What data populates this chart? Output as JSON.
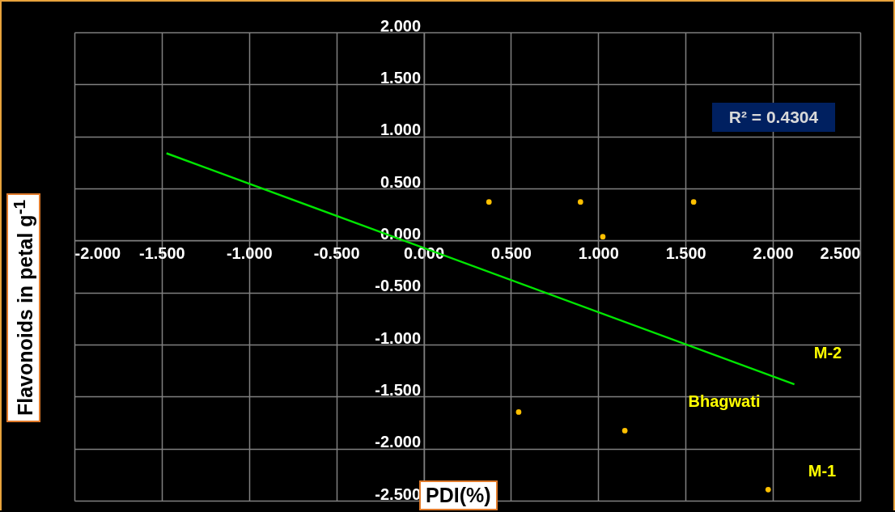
{
  "chart_data": {
    "type": "scatter",
    "xlabel": "PDI(%)",
    "ylabel": "Flavonoids in petal g$^{-1}$",
    "xlim": [
      -2,
      2.5
    ],
    "ylim": [
      -2.5,
      2
    ],
    "xticks": [
      {
        "value": -2,
        "label": "-2.000"
      },
      {
        "value": -1.5,
        "label": "-1.500"
      },
      {
        "value": -1,
        "label": "-1.000"
      },
      {
        "value": -0.5,
        "label": "-0.500"
      },
      {
        "value": 0,
        "label": "0.000"
      },
      {
        "value": 0.5,
        "label": "0.500"
      },
      {
        "value": 1,
        "label": "1.000"
      },
      {
        "value": 1.5,
        "label": "1.500"
      },
      {
        "value": 2,
        "label": "2.000"
      },
      {
        "value": 2.5,
        "label": "2.500"
      }
    ],
    "yticks": [
      {
        "value": -2.5,
        "label": "-2.500"
      },
      {
        "value": -2,
        "label": "-2.000"
      },
      {
        "value": -1.5,
        "label": "-1.500"
      },
      {
        "value": -1,
        "label": "-1.000"
      },
      {
        "value": -0.5,
        "label": "-0.500"
      },
      {
        "value": 0,
        "label": "0.000"
      },
      {
        "value": 0.5,
        "label": "0.500"
      },
      {
        "value": 1,
        "label": "1.000"
      },
      {
        "value": 1.5,
        "label": "1.500"
      },
      {
        "value": 2,
        "label": "2.000"
      }
    ],
    "grid": true,
    "series": [
      {
        "marker": "circle",
        "color": "#ffc000",
        "x": [
          0.374,
          0.898,
          1.026,
          1.546,
          0.544,
          1.152,
          1.973
        ],
        "values": [
          0.37,
          0.37,
          0.036,
          0.37,
          -1.648,
          -1.827,
          -2.394
        ]
      },
      {
        "type": "line",
        "color": "#00e600",
        "x": [
          -1.473,
          2.123
        ],
        "values": [
          0.838,
          -1.382
        ]
      }
    ],
    "annotations": [
      "R² = 0.4304",
      "M-2",
      "Bhagwati",
      "M-1"
    ]
  }
}
